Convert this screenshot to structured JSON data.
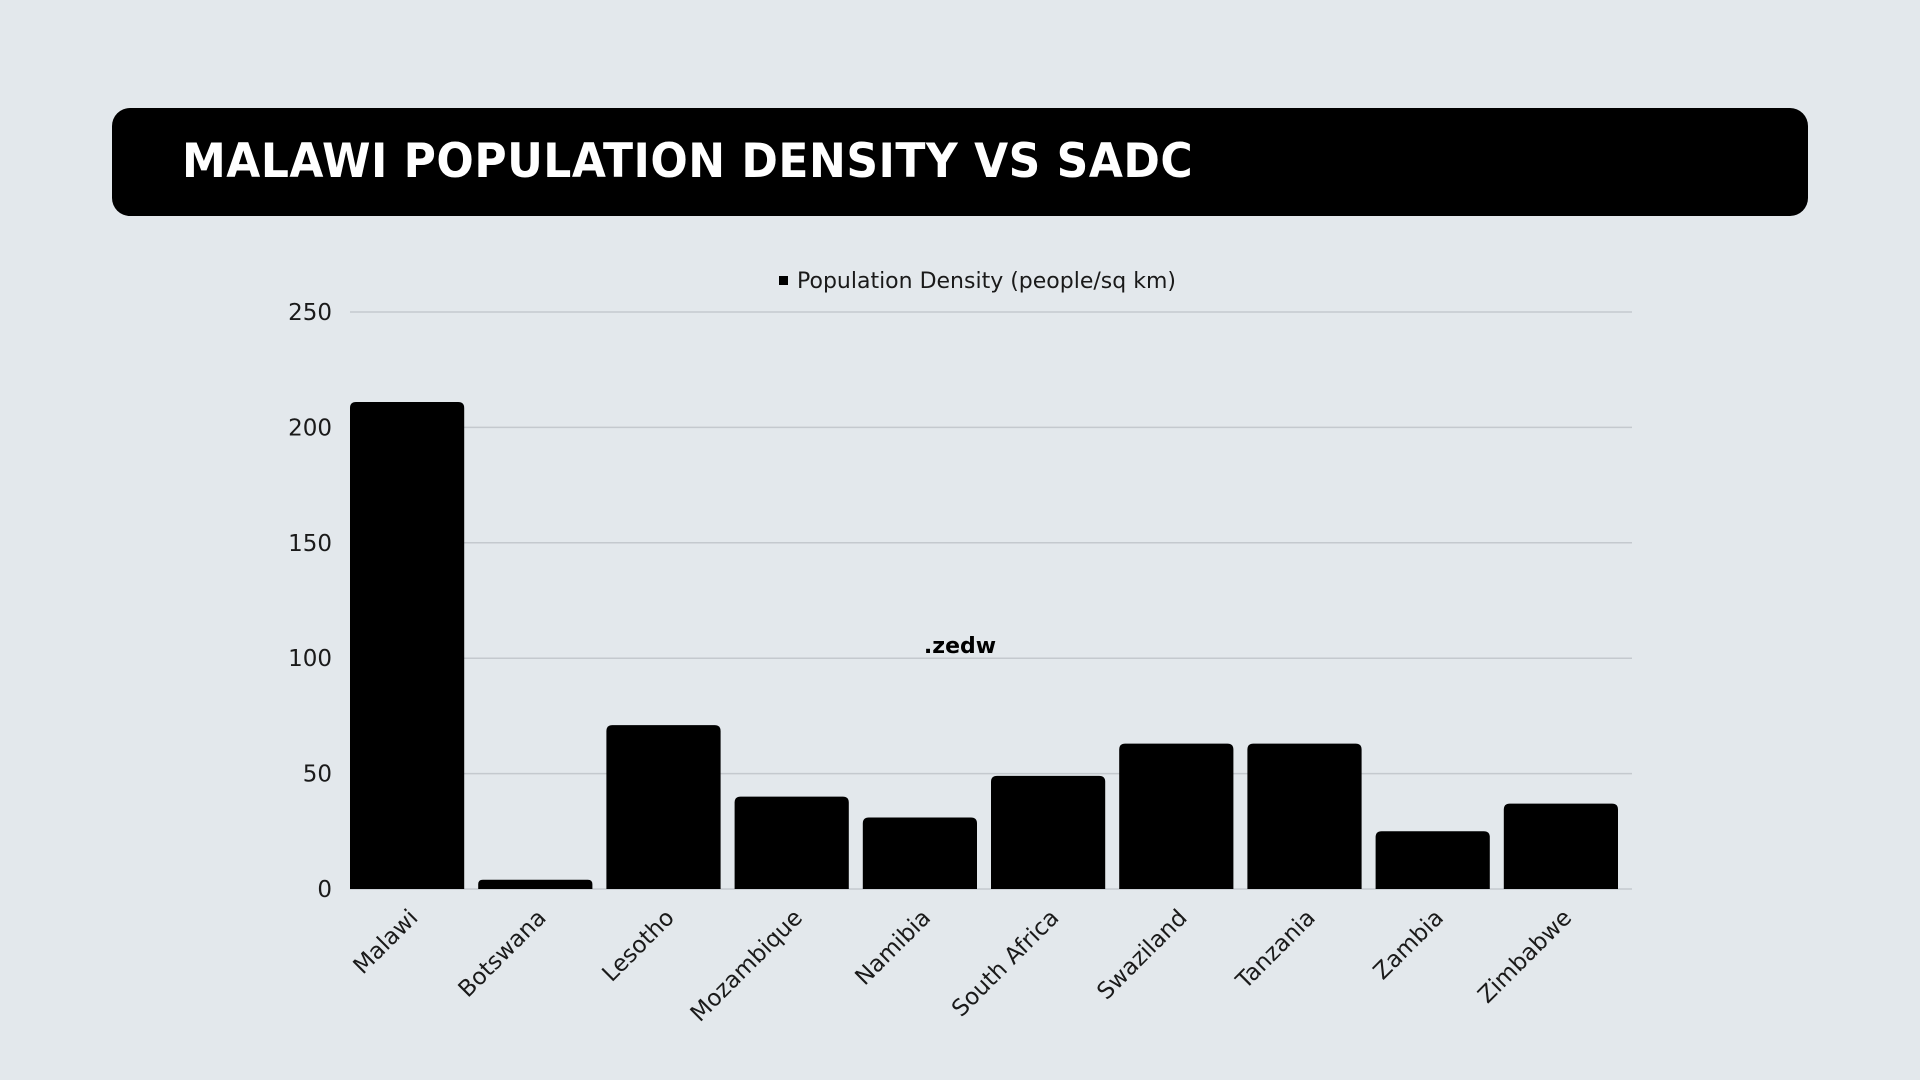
{
  "header": {
    "title": "MALAWI POPULATION DENSITY VS SADC"
  },
  "watermark": ".zedw",
  "colors": {
    "background": "#e3e8ec",
    "bar": "#000000",
    "grid": "#c4c9ce",
    "banner": "#000000"
  },
  "chart_data": {
    "type": "bar",
    "title": "MALAWI POPULATION DENSITY VS SADC",
    "xlabel": "",
    "ylabel": "",
    "legend_position": "top-center",
    "grid": true,
    "categories": [
      "Malawi",
      "Botswana",
      "Lesotho",
      "Mozambique",
      "Namibia",
      "South Africa",
      "Swaziland",
      "Tanzania",
      "Zambia",
      "Zimbabwe"
    ],
    "series": [
      {
        "name": "Population Density (people/sq km)",
        "values": [
          211,
          4,
          71,
          40,
          31,
          49,
          63,
          63,
          25,
          37
        ]
      }
    ],
    "ylim": [
      0,
      250
    ],
    "yticks": [
      0,
      50,
      100,
      150,
      200,
      250
    ]
  }
}
